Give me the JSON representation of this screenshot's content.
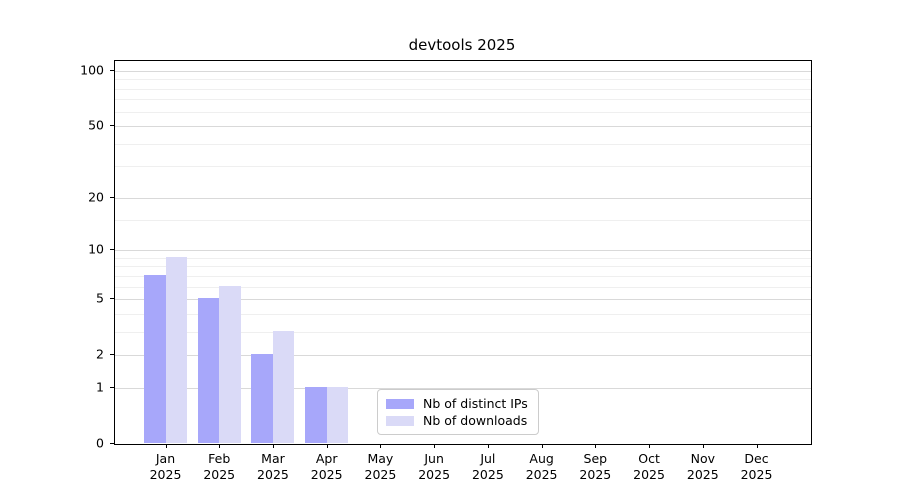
{
  "title": "devtools 2025",
  "chart_data": {
    "type": "bar",
    "title": "devtools 2025",
    "xlabel": "",
    "ylabel": "",
    "year_label": "2025",
    "categories": [
      "Jan",
      "Feb",
      "Mar",
      "Apr",
      "May",
      "Jun",
      "Jul",
      "Aug",
      "Sep",
      "Oct",
      "Nov",
      "Dec"
    ],
    "series": [
      {
        "name": "Nb of distinct IPs",
        "color": "#a7a7fa",
        "values": [
          7,
          5,
          2,
          1,
          0,
          0,
          0,
          0,
          0,
          0,
          0,
          0
        ]
      },
      {
        "name": "Nb of downloads",
        "color": "#dadaf7",
        "values": [
          9,
          6,
          3,
          1,
          0,
          0,
          0,
          0,
          0,
          0,
          0,
          0
        ]
      }
    ],
    "y_scale": "log10(v+1)",
    "y_ticks": [
      0,
      1,
      2,
      5,
      10,
      20,
      50,
      100
    ],
    "y_minor_ticks": [
      3,
      4,
      6,
      7,
      8,
      9,
      15,
      30,
      40,
      60,
      70,
      80,
      90
    ],
    "ylim": [
      0,
      113
    ],
    "grid": "on",
    "legend_position": "bottom-center-inside",
    "colors": {
      "major_grid": "#d9d9d9",
      "minor_grid": "#efefef",
      "spine": "#000000",
      "text": "#000000"
    }
  }
}
